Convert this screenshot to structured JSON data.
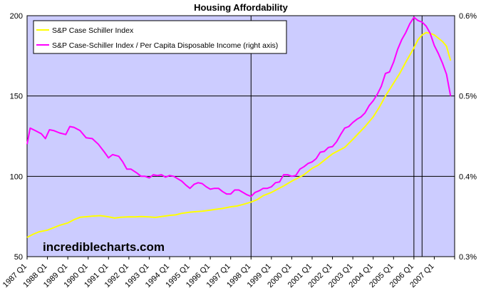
{
  "chart_data": {
    "type": "line",
    "title": "Housing Affordability",
    "watermark": "incrediblecharts.com",
    "xlabel": "",
    "ylabel": "",
    "ylim": [
      50,
      200
    ],
    "y_ticks": [
      "200",
      "150",
      "100",
      "50"
    ],
    "y2lim": [
      0.3,
      0.6
    ],
    "y2_ticks": [
      "0.6%",
      "0.5%",
      "0.4%",
      "0.3%"
    ],
    "x_start_year": 1987,
    "x_end_year": 2008,
    "categories": [
      "1987 Q1",
      "1988 Q1",
      "1989 Q1",
      "1990 Q1",
      "1991 Q1",
      "1992 Q1",
      "1993 Q1",
      "1994 Q1",
      "1995 Q1",
      "1996 Q1",
      "1997 Q1",
      "1998 Q1",
      "1999 Q1",
      "2000 Q1",
      "2001 Q1",
      "2002 Q1",
      "2003 Q1",
      "2004 Q1",
      "2005 Q1",
      "2006 Q1",
      "2007 Q1"
    ],
    "vertical_marker_years": [
      1998.0,
      2006.0,
      2006.4
    ],
    "legend_position": "top-left",
    "series": [
      {
        "name": "S&P Case Schiller Index",
        "axis": "left",
        "color": "#ffff00",
        "points": [
          [
            1987.0,
            62
          ],
          [
            1987.3,
            64
          ],
          [
            1987.6,
            65.5
          ],
          [
            1988.0,
            66.5
          ],
          [
            1988.3,
            68
          ],
          [
            1988.6,
            69.5
          ],
          [
            1989.0,
            71
          ],
          [
            1989.3,
            73
          ],
          [
            1989.6,
            74.5
          ],
          [
            1990.0,
            75
          ],
          [
            1990.3,
            75.3
          ],
          [
            1990.6,
            75.5
          ],
          [
            1991.0,
            74.8
          ],
          [
            1991.3,
            74
          ],
          [
            1991.6,
            74.5
          ],
          [
            1992.0,
            74.8
          ],
          [
            1992.3,
            74.7
          ],
          [
            1992.6,
            75
          ],
          [
            1993.0,
            74.7
          ],
          [
            1993.3,
            74.4
          ],
          [
            1993.6,
            75
          ],
          [
            1994.0,
            75.7
          ],
          [
            1994.3,
            76
          ],
          [
            1994.6,
            77
          ],
          [
            1995.0,
            77.7
          ],
          [
            1995.3,
            78
          ],
          [
            1995.6,
            78.3
          ],
          [
            1996.0,
            79
          ],
          [
            1996.3,
            79.5
          ],
          [
            1996.6,
            80
          ],
          [
            1997.0,
            81
          ],
          [
            1997.3,
            81.5
          ],
          [
            1997.6,
            82.5
          ],
          [
            1998.0,
            84
          ],
          [
            1998.3,
            85.5
          ],
          [
            1998.6,
            88
          ],
          [
            1999.0,
            90
          ],
          [
            1999.3,
            92
          ],
          [
            1999.6,
            94
          ],
          [
            2000.0,
            97
          ],
          [
            2000.3,
            99
          ],
          [
            2000.6,
            101
          ],
          [
            2001.0,
            105
          ],
          [
            2001.3,
            107
          ],
          [
            2001.6,
            110
          ],
          [
            2002.0,
            114
          ],
          [
            2002.3,
            116
          ],
          [
            2002.6,
            118
          ],
          [
            2003.0,
            123
          ],
          [
            2003.3,
            127
          ],
          [
            2003.6,
            131
          ],
          [
            2004.0,
            137
          ],
          [
            2004.3,
            143
          ],
          [
            2004.6,
            150
          ],
          [
            2005.0,
            158
          ],
          [
            2005.3,
            164
          ],
          [
            2005.6,
            171
          ],
          [
            2006.0,
            180
          ],
          [
            2006.2,
            185
          ],
          [
            2006.4,
            188
          ],
          [
            2006.6,
            189.5
          ],
          [
            2006.8,
            189
          ],
          [
            2007.0,
            188
          ],
          [
            2007.2,
            186
          ],
          [
            2007.4,
            184
          ],
          [
            2007.6,
            181
          ],
          [
            2007.8,
            172
          ]
        ]
      },
      {
        "name": "S&P Case-Schiller Index / Per Capita Disposable Income (right axis)",
        "axis": "right",
        "color": "#ff00ff",
        "points": [
          [
            1987.0,
            0.44
          ],
          [
            1987.15,
            0.46
          ],
          [
            1987.4,
            0.457
          ],
          [
            1987.7,
            0.453
          ],
          [
            1987.9,
            0.447
          ],
          [
            1988.1,
            0.458
          ],
          [
            1988.3,
            0.457
          ],
          [
            1988.6,
            0.454
          ],
          [
            1988.9,
            0.452
          ],
          [
            1989.1,
            0.462
          ],
          [
            1989.3,
            0.461
          ],
          [
            1989.6,
            0.457
          ],
          [
            1989.9,
            0.448
          ],
          [
            1990.2,
            0.447
          ],
          [
            1990.5,
            0.44
          ],
          [
            1990.8,
            0.43
          ],
          [
            1991.0,
            0.423
          ],
          [
            1991.2,
            0.427
          ],
          [
            1991.5,
            0.425
          ],
          [
            1991.7,
            0.418
          ],
          [
            1991.9,
            0.409
          ],
          [
            1992.1,
            0.409
          ],
          [
            1992.4,
            0.404
          ],
          [
            1992.6,
            0.4
          ],
          [
            1992.8,
            0.4
          ],
          [
            1993.0,
            0.398
          ],
          [
            1993.2,
            0.402
          ],
          [
            1993.4,
            0.401
          ],
          [
            1993.6,
            0.402
          ],
          [
            1993.8,
            0.399
          ],
          [
            1994.0,
            0.401
          ],
          [
            1994.2,
            0.4
          ],
          [
            1994.4,
            0.397
          ],
          [
            1994.6,
            0.394
          ],
          [
            1994.8,
            0.389
          ],
          [
            1995.0,
            0.385
          ],
          [
            1995.2,
            0.39
          ],
          [
            1995.4,
            0.392
          ],
          [
            1995.6,
            0.391
          ],
          [
            1995.8,
            0.387
          ],
          [
            1996.0,
            0.384
          ],
          [
            1996.2,
            0.385
          ],
          [
            1996.4,
            0.385
          ],
          [
            1996.6,
            0.381
          ],
          [
            1996.8,
            0.378
          ],
          [
            1997.0,
            0.378
          ],
          [
            1997.2,
            0.383
          ],
          [
            1997.4,
            0.383
          ],
          [
            1997.6,
            0.38
          ],
          [
            1997.8,
            0.377
          ],
          [
            1998.0,
            0.375
          ],
          [
            1998.2,
            0.38
          ],
          [
            1998.4,
            0.382
          ],
          [
            1998.6,
            0.385
          ],
          [
            1998.8,
            0.385
          ],
          [
            1999.0,
            0.387
          ],
          [
            1999.2,
            0.392
          ],
          [
            1999.4,
            0.393
          ],
          [
            1999.6,
            0.402
          ],
          [
            1999.8,
            0.402
          ],
          [
            2000.0,
            0.4
          ],
          [
            2000.2,
            0.401
          ],
          [
            2000.4,
            0.409
          ],
          [
            2000.6,
            0.412
          ],
          [
            2000.8,
            0.416
          ],
          [
            2001.0,
            0.418
          ],
          [
            2001.2,
            0.422
          ],
          [
            2001.4,
            0.43
          ],
          [
            2001.6,
            0.431
          ],
          [
            2001.8,
            0.436
          ],
          [
            2002.0,
            0.437
          ],
          [
            2002.2,
            0.443
          ],
          [
            2002.4,
            0.452
          ],
          [
            2002.6,
            0.46
          ],
          [
            2002.8,
            0.462
          ],
          [
            2003.0,
            0.467
          ],
          [
            2003.2,
            0.471
          ],
          [
            2003.4,
            0.474
          ],
          [
            2003.6,
            0.479
          ],
          [
            2003.8,
            0.488
          ],
          [
            2004.0,
            0.494
          ],
          [
            2004.2,
            0.502
          ],
          [
            2004.4,
            0.512
          ],
          [
            2004.6,
            0.528
          ],
          [
            2004.8,
            0.53
          ],
          [
            2005.0,
            0.542
          ],
          [
            2005.2,
            0.558
          ],
          [
            2005.4,
            0.57
          ],
          [
            2005.6,
            0.579
          ],
          [
            2005.8,
            0.59
          ],
          [
            2006.0,
            0.598
          ],
          [
            2006.2,
            0.594
          ],
          [
            2006.4,
            0.592
          ],
          [
            2006.6,
            0.587
          ],
          [
            2006.8,
            0.578
          ],
          [
            2007.0,
            0.563
          ],
          [
            2007.2,
            0.553
          ],
          [
            2007.4,
            0.541
          ],
          [
            2007.6,
            0.527
          ],
          [
            2007.8,
            0.5
          ]
        ]
      }
    ]
  }
}
